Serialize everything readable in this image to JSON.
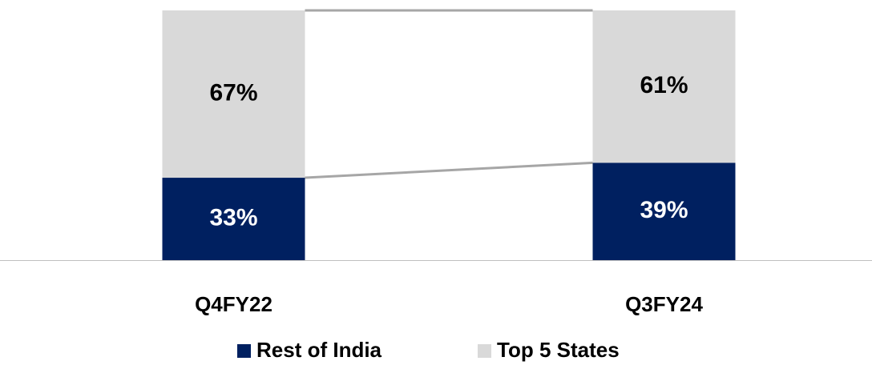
{
  "chart_data": {
    "type": "bar",
    "stacked": true,
    "categories": [
      "Q4FY22",
      "Q3FY24"
    ],
    "series": [
      {
        "name": "Rest of India",
        "color": "#002060",
        "label_color": "#ffffff",
        "values": [
          33,
          39
        ],
        "value_labels": [
          "33%",
          "39%"
        ]
      },
      {
        "name": "Top 5 States",
        "color": "#d9d9d9",
        "label_color": "#000000",
        "values": [
          67,
          61
        ],
        "value_labels": [
          "67%",
          "61%"
        ]
      }
    ],
    "ylim": [
      0,
      100
    ],
    "connector_color": "#a6a6a6",
    "legend": "bottom"
  }
}
